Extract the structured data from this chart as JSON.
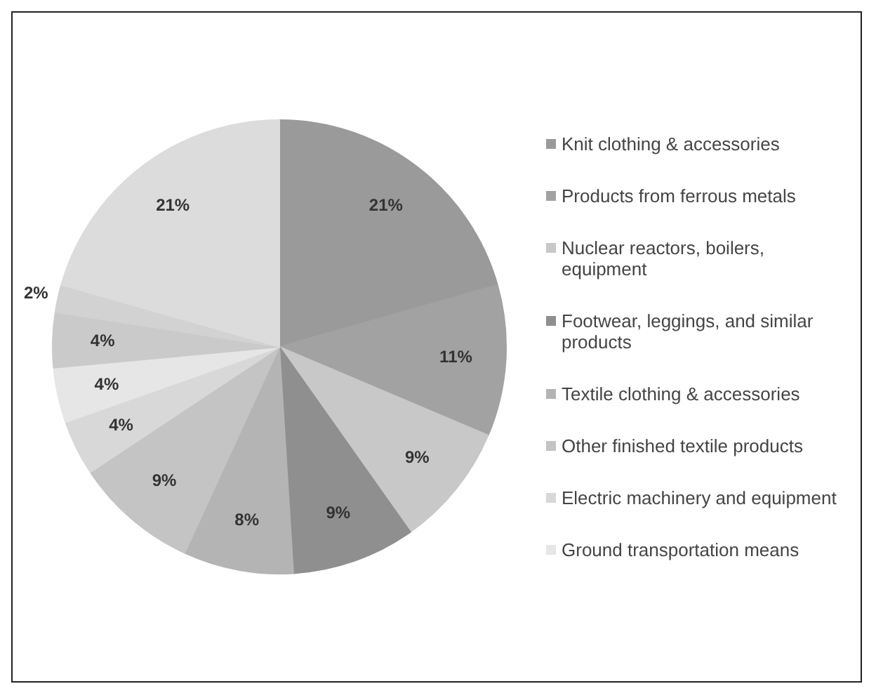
{
  "chart_data": {
    "type": "pie",
    "categories": [
      "Knit clothing & accessories",
      "Products from ferrous metals",
      "Nuclear reactors, boilers, equipment",
      "Footwear, leggings, and similar products",
      "Textile clothing & accessories",
      "Other finished textile products",
      "Electric machinery and equipment",
      "Ground transportation means",
      null,
      null,
      null
    ],
    "values": [
      21,
      11,
      9,
      9,
      8,
      9,
      4,
      4,
      4,
      2,
      21
    ],
    "value_labels": [
      "21%",
      "11%",
      "9%",
      "9%",
      "8%",
      "9%",
      "4%",
      "4%",
      "4%",
      "2%",
      "21%"
    ],
    "colors": [
      "#9a9a9a",
      "#a2a2a2",
      "#c8c8c8",
      "#8f8f8f",
      "#b4b4b4",
      "#c4c4c4",
      "#d8d8d8",
      "#e6e6e6",
      "#cacaca",
      "#d2d2d2",
      "#dcdcdc"
    ],
    "legend": "right"
  }
}
